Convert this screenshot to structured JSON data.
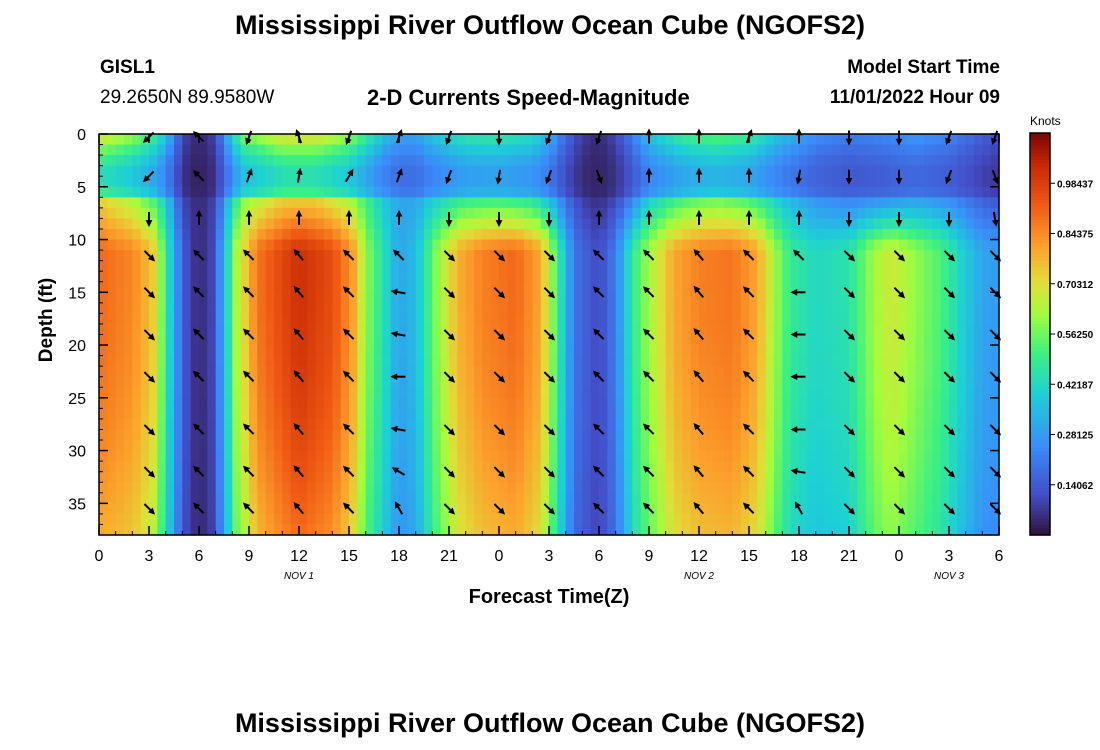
{
  "title": "Mississippi River Outflow Ocean Cube (NGOFS2)",
  "station": {
    "id": "GISL1",
    "coords": "29.2650N  89.9580W"
  },
  "model_start": {
    "label": "Model Start Time",
    "value": "11/01/2022 Hour 09"
  },
  "bottom_title": "Mississippi River Outflow Ocean Cube (NGOFS2)",
  "chart_data": {
    "type": "heatmap",
    "title": "2-D Currents Speed-Magnitude",
    "xlabel": "Forecast Time(Z)",
    "ylabel": "Depth (ft)",
    "x_hours_range": [
      0,
      54
    ],
    "ylim": [
      0,
      38
    ],
    "x_ticks": [
      {
        "h": 0,
        "label": "0"
      },
      {
        "h": 3,
        "label": "3"
      },
      {
        "h": 6,
        "label": "6"
      },
      {
        "h": 9,
        "label": "9"
      },
      {
        "h": 12,
        "label": "12"
      },
      {
        "h": 15,
        "label": "15"
      },
      {
        "h": 18,
        "label": "18"
      },
      {
        "h": 21,
        "label": "21"
      },
      {
        "h": 24,
        "label": "0"
      },
      {
        "h": 27,
        "label": "3"
      },
      {
        "h": 30,
        "label": "6"
      },
      {
        "h": 33,
        "label": "9"
      },
      {
        "h": 36,
        "label": "12"
      },
      {
        "h": 39,
        "label": "15"
      },
      {
        "h": 42,
        "label": "18"
      },
      {
        "h": 45,
        "label": "21"
      },
      {
        "h": 48,
        "label": "0"
      },
      {
        "h": 51,
        "label": "3"
      },
      {
        "h": 54,
        "label": "6"
      }
    ],
    "date_labels": [
      {
        "h": 12,
        "label": "NOV 1"
      },
      {
        "h": 36,
        "label": "NOV 2"
      },
      {
        "h": 51,
        "label": "NOV 3"
      }
    ],
    "y_ticks": [
      0,
      5,
      10,
      15,
      20,
      25,
      30,
      35
    ],
    "colorbar": {
      "label": "Knots",
      "min": 0,
      "max": 1.125,
      "ticks": [
        0.140625,
        0.28125,
        0.421875,
        0.5625,
        0.703125,
        0.84375,
        0.984375
      ],
      "tick_labels": [
        "0.14062",
        "0.28125",
        "0.42187",
        "0.56250",
        "0.70312",
        "0.84375",
        "0.98437"
      ]
    },
    "speed_profile_upper": [
      [
        0,
        0.72
      ],
      [
        2,
        0.62
      ],
      [
        3.5,
        0.48
      ],
      [
        4.3,
        0.3
      ],
      [
        5,
        0.1
      ],
      [
        6,
        0.04
      ],
      [
        7,
        0.1
      ],
      [
        7.6,
        0.3
      ],
      [
        8.6,
        0.58
      ],
      [
        11,
        0.72
      ],
      [
        13,
        0.72
      ],
      [
        15,
        0.62
      ],
      [
        16,
        0.5
      ],
      [
        17,
        0.38
      ],
      [
        18,
        0.3
      ],
      [
        19,
        0.3
      ],
      [
        20,
        0.38
      ],
      [
        22,
        0.47
      ],
      [
        24,
        0.48
      ],
      [
        26,
        0.44
      ],
      [
        27,
        0.34
      ],
      [
        28,
        0.18
      ],
      [
        29,
        0.08
      ],
      [
        30,
        0.05
      ],
      [
        31,
        0.1
      ],
      [
        32,
        0.22
      ],
      [
        33,
        0.38
      ],
      [
        35,
        0.5
      ],
      [
        37,
        0.55
      ],
      [
        39,
        0.5
      ],
      [
        41,
        0.36
      ],
      [
        43,
        0.26
      ],
      [
        45,
        0.22
      ],
      [
        47,
        0.24
      ],
      [
        49,
        0.28
      ],
      [
        51,
        0.24
      ],
      [
        53,
        0.15
      ],
      [
        54,
        0.12
      ]
    ],
    "speed_profile_lower": [
      [
        0,
        0.9
      ],
      [
        2,
        0.85
      ],
      [
        3.2,
        0.75
      ],
      [
        4,
        0.5
      ],
      [
        4.5,
        0.3
      ],
      [
        5.2,
        0.12
      ],
      [
        6,
        0.04
      ],
      [
        6.8,
        0.1
      ],
      [
        7.4,
        0.3
      ],
      [
        8.2,
        0.62
      ],
      [
        9.5,
        0.88
      ],
      [
        12,
        1.02
      ],
      [
        14,
        0.95
      ],
      [
        15.2,
        0.82
      ],
      [
        16,
        0.6
      ],
      [
        17,
        0.45
      ],
      [
        18,
        0.3
      ],
      [
        19,
        0.35
      ],
      [
        20,
        0.55
      ],
      [
        21.5,
        0.78
      ],
      [
        23,
        0.86
      ],
      [
        25,
        0.9
      ],
      [
        26.5,
        0.8
      ],
      [
        27.5,
        0.5
      ],
      [
        28.5,
        0.2
      ],
      [
        30,
        0.1
      ],
      [
        31,
        0.22
      ],
      [
        32,
        0.48
      ],
      [
        33,
        0.62
      ],
      [
        34.5,
        0.8
      ],
      [
        36,
        0.86
      ],
      [
        38,
        0.88
      ],
      [
        39.5,
        0.8
      ],
      [
        40.5,
        0.62
      ],
      [
        41.5,
        0.48
      ],
      [
        43,
        0.42
      ],
      [
        45,
        0.45
      ],
      [
        46.5,
        0.62
      ],
      [
        47.5,
        0.68
      ],
      [
        49,
        0.6
      ],
      [
        50.5,
        0.52
      ],
      [
        52,
        0.38
      ],
      [
        53,
        0.3
      ],
      [
        54,
        0.28
      ]
    ],
    "vector_columns_h": [
      3,
      6,
      9,
      12,
      15,
      18,
      21,
      24,
      27,
      30,
      33,
      36,
      39,
      42,
      45,
      48,
      51,
      54
    ],
    "vector_depths_ft": [
      0,
      4,
      8,
      11.5,
      15,
      19,
      23,
      28,
      32,
      35.5
    ],
    "vector_directions_deg": {
      "h3": [
        225,
        225,
        180,
        135,
        135,
        135,
        135,
        135,
        135,
        135
      ],
      "h6": [
        315,
        315,
        0,
        315,
        315,
        315,
        315,
        315,
        315,
        315
      ],
      "h9": [
        200,
        20,
        0,
        315,
        315,
        315,
        315,
        315,
        315,
        315
      ],
      "h12": [
        340,
        10,
        0,
        320,
        320,
        320,
        320,
        320,
        320,
        320
      ],
      "h15": [
        200,
        30,
        0,
        315,
        315,
        315,
        315,
        315,
        315,
        315
      ],
      "h18": [
        20,
        20,
        0,
        315,
        280,
        280,
        270,
        280,
        300,
        330
      ],
      "h21": [
        200,
        200,
        180,
        135,
        135,
        135,
        135,
        135,
        135,
        135
      ],
      "h24": [
        180,
        190,
        180,
        135,
        135,
        135,
        135,
        135,
        135,
        135
      ],
      "h27": [
        200,
        200,
        180,
        135,
        135,
        135,
        135,
        135,
        135,
        135
      ],
      "h30": [
        200,
        160,
        0,
        315,
        315,
        315,
        315,
        315,
        315,
        315
      ],
      "h33": [
        0,
        0,
        0,
        315,
        315,
        315,
        315,
        315,
        315,
        315
      ],
      "h36": [
        0,
        0,
        0,
        320,
        320,
        320,
        320,
        320,
        320,
        320
      ],
      "h39": [
        20,
        0,
        0,
        315,
        315,
        315,
        315,
        315,
        315,
        315
      ],
      "h42": [
        0,
        190,
        0,
        315,
        270,
        270,
        270,
        270,
        280,
        330
      ],
      "h45": [
        180,
        180,
        180,
        135,
        135,
        135,
        135,
        135,
        135,
        135
      ],
      "h48": [
        180,
        180,
        180,
        135,
        135,
        135,
        135,
        135,
        135,
        135
      ],
      "h51": [
        200,
        200,
        180,
        135,
        135,
        135,
        135,
        135,
        135,
        135
      ],
      "h54": [
        200,
        160,
        170,
        135,
        135,
        135,
        135,
        135,
        135,
        135
      ]
    }
  }
}
